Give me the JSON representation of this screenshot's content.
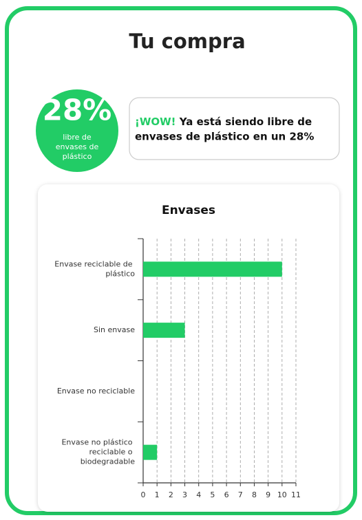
{
  "header": {
    "title": "Tu compra"
  },
  "badge": {
    "value": "28%",
    "lines": [
      "libre de",
      "envases de",
      "plástico"
    ]
  },
  "message": {
    "highlight": "¡WOW!",
    "line1": "Ya está siendo libre de",
    "line2": "envases de plástico en un 28%"
  },
  "chart_data": {
    "type": "barh",
    "title": "Envases",
    "categories": [
      "Envase reciclable de plástico",
      "Sin envase",
      "Envase no reciclable",
      "Envase no plástico reciclable o biodegradable"
    ],
    "values": [
      10,
      3,
      0,
      1
    ],
    "color": "#22cc66",
    "xlim": [
      0,
      11
    ],
    "xticks": [
      0,
      1,
      2,
      3,
      4,
      5,
      6,
      7,
      8,
      9,
      10,
      11
    ],
    "grid": true
  }
}
